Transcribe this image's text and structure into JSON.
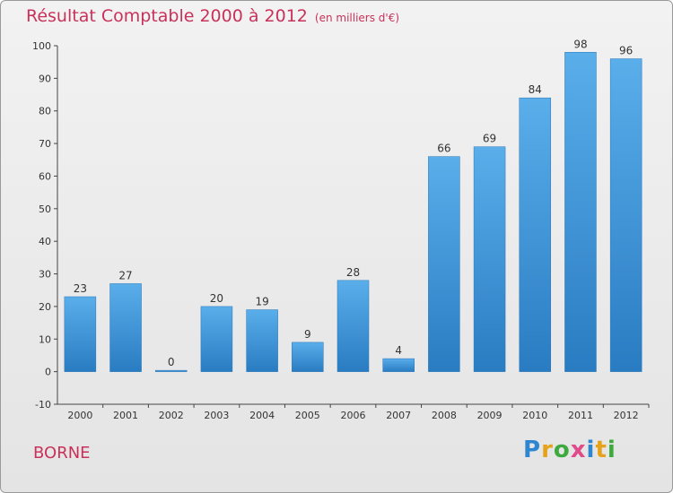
{
  "chart_data": {
    "type": "bar",
    "title": "Résultat Comptable 2000 à 2012",
    "subtitle": "(en milliers d'€)",
    "categories": [
      "2000",
      "2001",
      "2002",
      "2003",
      "2004",
      "2005",
      "2006",
      "2007",
      "2008",
      "2009",
      "2010",
      "2011",
      "2012"
    ],
    "values": [
      23,
      27,
      0,
      20,
      19,
      9,
      28,
      4,
      66,
      69,
      84,
      98,
      96
    ],
    "ylim": [
      -10,
      100
    ],
    "yticks": [
      -10,
      0,
      10,
      20,
      30,
      40,
      50,
      60,
      70,
      80,
      90,
      100
    ],
    "grid": false,
    "bar_color": "#4f9fe0"
  },
  "footer": {
    "place": "BORNE",
    "logo_letters": [
      "P",
      "r",
      "o",
      "x",
      "i",
      "t",
      "i"
    ],
    "logo_colors": [
      "#2e86d1",
      "#e6a21a",
      "#3caa3c",
      "#e04b8a",
      "#2e86d1",
      "#e6a21a",
      "#3caa3c"
    ]
  }
}
